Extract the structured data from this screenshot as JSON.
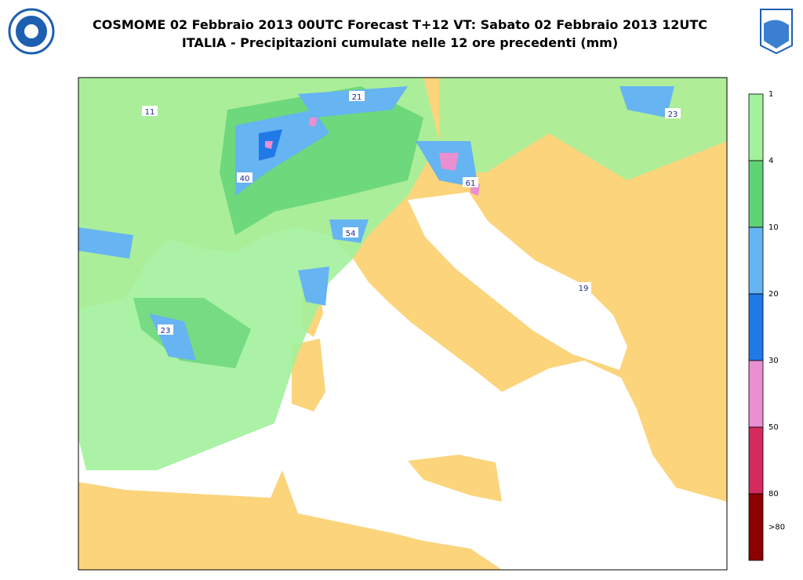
{
  "header": {
    "title_line1": "COSMOME 02 Febbraio 2013 00UTC Forecast T+12 VT: Sabato 02 Febbraio 2013 12UTC",
    "title_line2": "ITALIA - Precipitazioni cumulate nelle 12 ore precedenti (mm)"
  },
  "map_labels": [
    "11",
    "21",
    "23",
    "40",
    "54",
    "61",
    "19",
    "23"
  ],
  "colorbar": {
    "colors": [
      "#a2f19c",
      "#5fd274",
      "#66b4f1",
      "#2079e6",
      "#ea8fd0",
      "#d42a5e",
      "#8b0000"
    ],
    "labels": [
      "1",
      "4",
      "10",
      "20",
      "30",
      "50",
      "80",
      ">80"
    ]
  }
}
